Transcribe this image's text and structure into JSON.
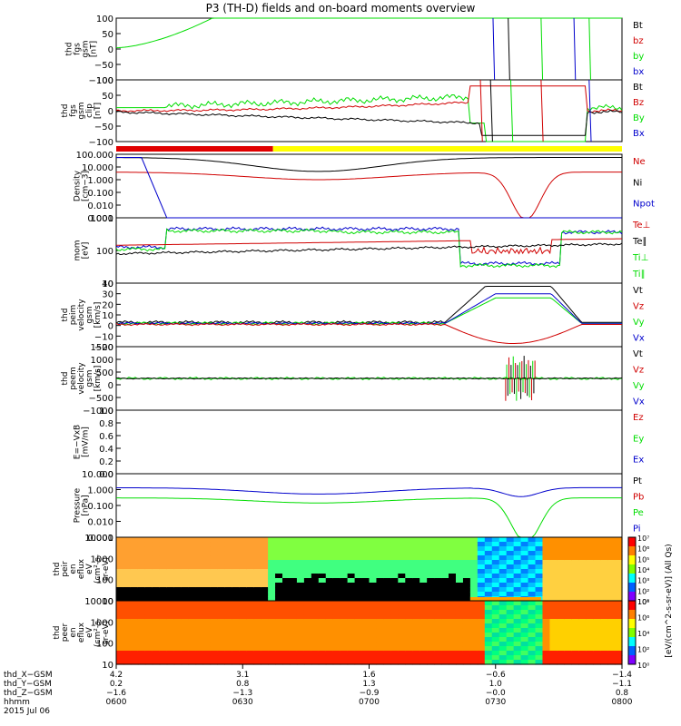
{
  "title": "P3 (TH-D) fields and on-board moments overview",
  "colors": {
    "black": "#000000",
    "red": "#d00000",
    "green": "#00dd00",
    "blue": "#0000cc",
    "yellow": "#ffff00"
  },
  "chart_data": [
    {
      "type": "line",
      "ylabel": [
        "thd",
        "fgs",
        "gsm",
        "[nT]"
      ],
      "yticks": [
        "100",
        "50",
        "0",
        "−50",
        "−100"
      ],
      "ylim": [
        -100,
        100
      ],
      "legend": [
        {
          "name": "Bt",
          "color": "black"
        },
        {
          "name": "bz",
          "color": "red"
        },
        {
          "name": "by",
          "color": "green"
        },
        {
          "name": "bx",
          "color": "blue"
        }
      ]
    },
    {
      "type": "line",
      "ylabel": [
        "thd",
        "fgs",
        "gsm",
        "clip",
        "[nT]"
      ],
      "yticks": [
        "100",
        "50",
        "0",
        "−50",
        "−100"
      ],
      "ylim": [
        -120,
        120
      ],
      "legend": [
        {
          "name": "Bt",
          "color": "black"
        },
        {
          "name": "Bz",
          "color": "red"
        },
        {
          "name": "By",
          "color": "green"
        },
        {
          "name": "Bx",
          "color": "blue"
        }
      ]
    },
    {
      "type": "line",
      "ylabel": [
        "Density",
        "[cm−3]"
      ],
      "yticks": [
        "100.000",
        "10.000",
        "1.000",
        "0.100",
        "0.010",
        "0.001"
      ],
      "log": true,
      "legend": [
        {
          "name": "Ne",
          "color": "red"
        },
        {
          "name": "Ni",
          "color": "black"
        },
        {
          "name": "Npot",
          "color": "blue"
        }
      ]
    },
    {
      "type": "line",
      "ylabel": [
        "mom",
        "[eV]"
      ],
      "yticks": [
        "1000",
        "100",
        "10"
      ],
      "log": true,
      "legend": [
        {
          "name": "Te⊥",
          "color": "red"
        },
        {
          "name": "Te∥",
          "color": "black"
        },
        {
          "name": "Ti⊥",
          "color": "green"
        },
        {
          "name": "Ti∥",
          "color": "green"
        }
      ]
    },
    {
      "type": "line",
      "ylabel": [
        "thd",
        "peim",
        "velocity",
        "gsm",
        "[km/s]"
      ],
      "yticks": [
        "40",
        "30",
        "20",
        "10",
        "0",
        "−10",
        "−20"
      ],
      "ylim": [
        -20,
        40
      ],
      "legend": [
        {
          "name": "Vt",
          "color": "black"
        },
        {
          "name": "Vz",
          "color": "red"
        },
        {
          "name": "Vy",
          "color": "green"
        },
        {
          "name": "Vx",
          "color": "blue"
        }
      ]
    },
    {
      "type": "line",
      "ylabel": [
        "thd",
        "peem",
        "velocity",
        "gsm",
        "[km/s]"
      ],
      "yticks": [
        "1500",
        "1000",
        "500",
        "0",
        "−500",
        "−1000"
      ],
      "ylim": [
        -1500,
        1500
      ],
      "legend": [
        {
          "name": "Vt",
          "color": "black"
        },
        {
          "name": "Vz",
          "color": "red"
        },
        {
          "name": "Vy",
          "color": "green"
        },
        {
          "name": "Vx",
          "color": "blue"
        }
      ]
    },
    {
      "type": "line",
      "ylabel": [
        "E=−VxB",
        "[mV/m]"
      ],
      "yticks": [
        "1.0",
        "0.8",
        "0.6",
        "0.4",
        "0.2",
        "0.0"
      ],
      "ylim": [
        0,
        1
      ],
      "legend": [
        {
          "name": "Ez",
          "color": "red"
        },
        {
          "name": "Ey",
          "color": "green"
        },
        {
          "name": "Ex",
          "color": "blue"
        }
      ]
    },
    {
      "type": "line",
      "ylabel": [
        "Pressure",
        "[nPa]"
      ],
      "yticks": [
        "10.000",
        "1.000",
        "0.100",
        "0.010",
        "0.001"
      ],
      "log": true,
      "legend": [
        {
          "name": "Pt",
          "color": "black"
        },
        {
          "name": "Pb",
          "color": "red"
        },
        {
          "name": "Pe",
          "color": "green"
        },
        {
          "name": "Pi",
          "color": "blue"
        }
      ]
    },
    {
      "type": "heatmap",
      "ylabel": [
        "thd",
        "peir",
        "en",
        "eflux",
        "eV",
        "(cm²-s-",
        "sr-eV)"
      ],
      "yticks": [
        "10000",
        "1000",
        "100",
        "10"
      ]
    },
    {
      "type": "heatmap",
      "ylabel": [
        "thd",
        "peer",
        "en",
        "eflux",
        "eV",
        "(cm²-s-",
        "sr-eV)"
      ],
      "yticks": [
        "10000",
        "1000",
        "100",
        "10"
      ]
    }
  ],
  "colorbar": {
    "label": "[eV/(cm^2-s-sr-eV)] (All Qs)",
    "ticks_top": [
      "10⁷",
      "10⁶",
      "10⁵",
      "10⁴",
      "10³",
      "10²",
      "10¹"
    ],
    "ticks_bottom": [
      "10⁸",
      "10⁶",
      "10⁴",
      "10²",
      "10⁰"
    ]
  },
  "xaxis": {
    "rows": [
      {
        "label": "thd_X−GSM",
        "values": [
          "4.2",
          "3.1",
          "1.6",
          "−0.6",
          "−1.4"
        ]
      },
      {
        "label": "thd_Y−GSM",
        "values": [
          "0.2",
          "0.8",
          "1.3",
          "1.0",
          "−1.1"
        ]
      },
      {
        "label": "thd_Z−GSM",
        "values": [
          "−1.6",
          "−1.3",
          "−0.9",
          "−0.0",
          "0.8"
        ]
      },
      {
        "label": "hhmm",
        "values": [
          "0600",
          "0630",
          "0700",
          "0730",
          "0800"
        ]
      }
    ],
    "date": "2015 Jul 06"
  }
}
